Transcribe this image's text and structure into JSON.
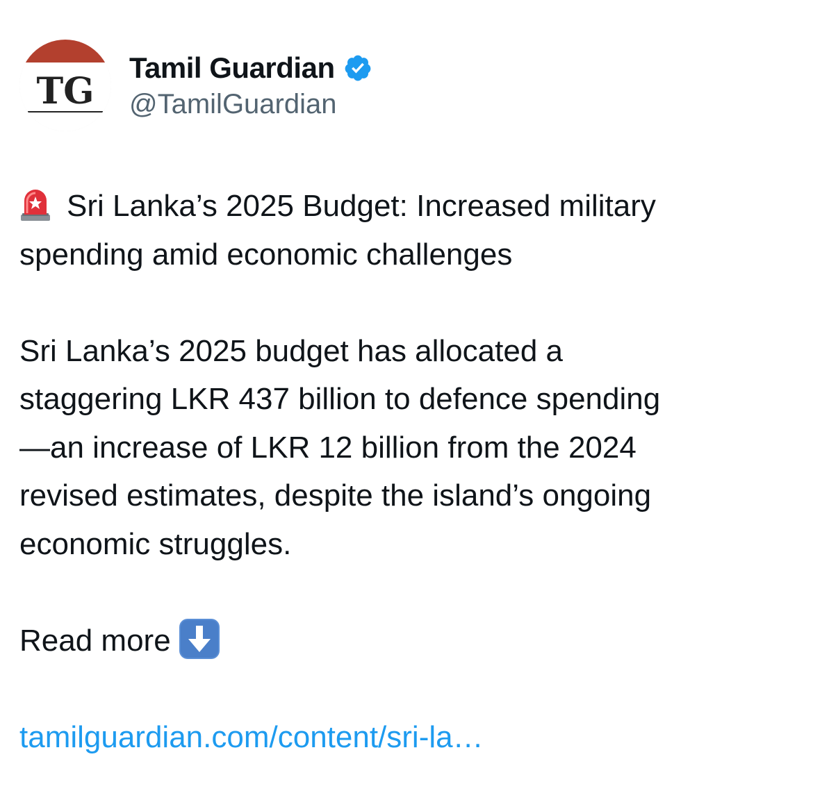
{
  "author": {
    "display_name": "Tamil Guardian",
    "handle": "@TamilGuardian",
    "avatar_text": "TG",
    "verified": true,
    "avatar_icon": "tamil-guardian-logo",
    "verified_icon": "verified-badge-icon"
  },
  "tweet": {
    "headline_icon": "siren-icon",
    "headline_line1": "Sri Lanka’s 2025 Budget: Increased military",
    "headline_line2": "spending amid economic challenges",
    "body_lines": [
      "Sri Lanka’s 2025 budget has allocated a",
      "staggering LKR 437 billion to defence spending",
      "—an increase of LKR 12 billion from the 2024",
      "revised estimates, despite the island’s ongoing",
      "economic struggles."
    ],
    "read_more_label": "Read more",
    "read_more_icon": "down-arrow-icon",
    "link_text": "tamilguardian.com/content/sri-la…"
  },
  "colors": {
    "text": "#0f1419",
    "secondary_text": "#536471",
    "link": "#1d9bf0",
    "verified_badge": "#1d9bf0",
    "logo_red": "#b3402e"
  }
}
